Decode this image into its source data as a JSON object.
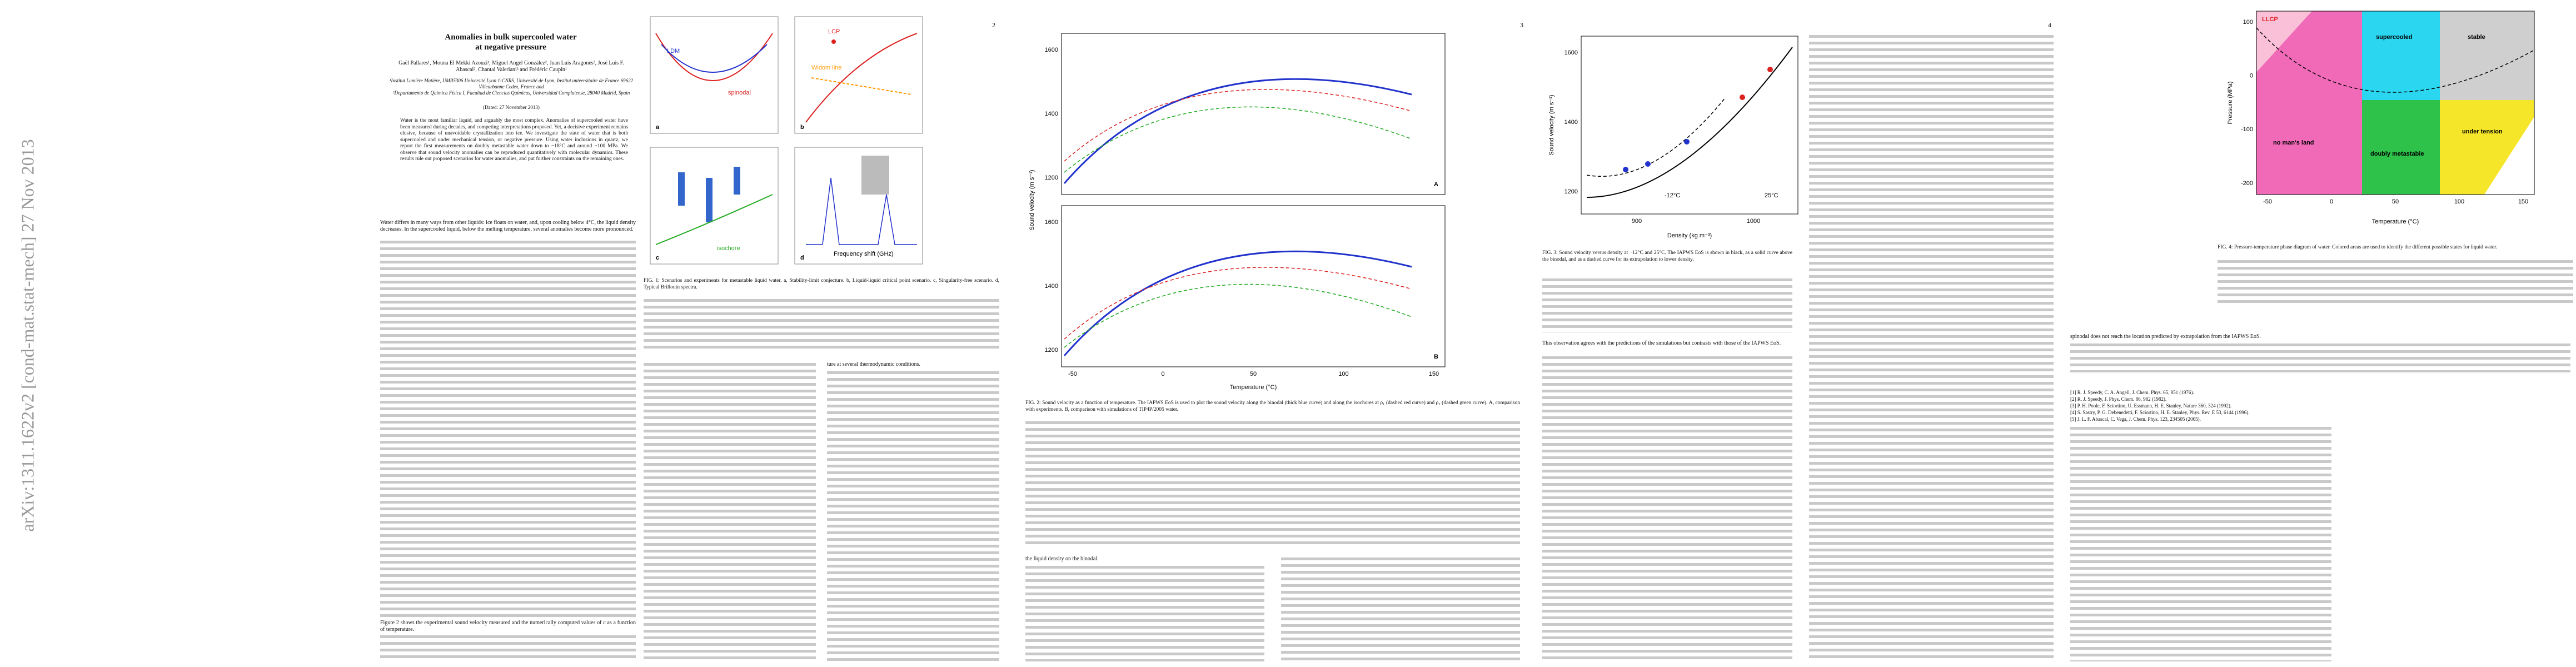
{
  "stamp": "arXiv:1311.1622v2 [cond-mat.stat-mech] 27 Nov 2013",
  "page_numbers": [
    2,
    3,
    4
  ],
  "header": {
    "title": [
      "Anomalies in bulk supercooled water",
      "at negative pressure"
    ],
    "authors": "Gaël Pallares¹, Mouna El Mekki Azouzi¹, Miguel Angel González², Juan Luis Aragones², José Luis F. Abascal², Chantal Valeriani² and Frédéric Caupin¹",
    "affiliations": [
      "¹Institut Lumière Matière, UMR5306 Université Lyon 1-CNRS, Université de Lyon, Institut universitaire de France 69622 Villeurbanne Cedex, France and",
      "²Departamento de Química Física I, Facultad de Ciencias Químicas, Universidad Complutense, 28040 Madrid, Spain"
    ],
    "dated": "(Dated: 27 November 2013)"
  },
  "abstract": "Water is the most familiar liquid, and arguably the most complex. Anomalies of supercooled water have been measured during decades, and competing interpretations proposed. Yet, a decisive experiment remains elusive, because of unavoidable crystallization into ice. We investigate the state of water that is both supercooled and under mechanical tension, or negative pressure. Using water inclusions in quartz, we report the first measurements on doubly metastable water down to −18°C and around −100 MPa. We observe that sound velocity anomalies can be reproduced quantitatively with molecular dynamics. These results rule out proposed scenarios for water anomalies, and put further constraints on the remaining ones.",
  "body": {
    "p1": "Water differs in many ways from other liquids: ice floats on water, and, upon cooling below 4°C, the liquid density decreases. In the supercooled liquid, below the melting temperature, several anomalies become more pronounced.",
    "p2": "Figure 2 shows the experimental sound velocity measured and the numerically computed values of c as a function of temperature.",
    "p3": "ture at several thermodynamic conditions.",
    "p4": "the liquid density on the binodal.",
    "p5": "This observation agrees with the predictions of the simulations but contrasts with those of the IAPWS EoS.",
    "p6": "spinodal does not reach the location predicted by extrapolation from the IAPWS EoS."
  },
  "figures": {
    "fig1": {
      "panels": [
        "a",
        "b",
        "c",
        "d"
      ],
      "labels": [
        "spinodal",
        "LDM",
        "LCP",
        "Widom line",
        "isochore",
        "Frequency shift (GHz)"
      ],
      "caption": "FIG. 1: Scenarios and experiments for metastable liquid water. a, Stability-limit conjecture. b, Liquid-liquid critical point scenario. c, Singularity-free scenario. d, Typical Brillouin spectra."
    },
    "fig2": {
      "panels": [
        "A",
        "B"
      ],
      "ylabel": "Sound velocity (m s⁻¹)",
      "xlabel": "Temperature (°C)",
      "yticks": [
        1200,
        1400,
        1600
      ],
      "xticks": [
        -50,
        0,
        50,
        100,
        150
      ],
      "caption": "FIG. 2: Sound velocity as a function of temperature. The IAPWS EoS is used to plot the sound velocity along the binodal (thick blue curve) and along the isochores at ρ₁ (dashed red curve) and ρ₂ (dashed green curve). A, comparison with experiments. B, comparison with simulations of TIP4P/2005 water."
    },
    "fig3": {
      "ylabel": "Sound velocity (m s⁻¹)",
      "xlabel": "Density (kg m⁻³)",
      "yticks": [
        1200,
        1400,
        1600
      ],
      "xticks": [
        900,
        1000
      ],
      "labels": [
        "-12°C",
        "25°C"
      ],
      "caption": "FIG. 3: Sound velocity versus density at −12°C and 25°C. The IAPWS EoS is shown in black, as a solid curve above the binodal, and as a dashed curve for its extrapolation to lower density."
    },
    "fig4": {
      "ylabel": "Pressure (MPa)",
      "xlabel": "Temperature (°C)",
      "yticks": [
        100,
        0,
        -100,
        -200
      ],
      "xticks": [
        -50,
        0,
        50,
        100,
        150
      ],
      "regions": [
        "LLCP",
        "supercooled",
        "stable",
        "under tension",
        "doubly metastable",
        "no man's land"
      ],
      "caption": "FIG. 4: Pressure-temperature phase diagram of water. Colored areas are used to identify the different possible states for liquid water."
    }
  },
  "references": [
    "[1] R. J. Speedy, C. A. Angell, J. Chem. Phys. 65, 851 (1976).",
    "[2] R. J. Speedy, J. Phys. Chem. 86, 982 (1982).",
    "[3] P. H. Poole, F. Sciortino, U. Essmann, H. E. Stanley, Nature 360, 324 (1992).",
    "[4] S. Sastry, P. G. Debenedetti, F. Sciortino, H. E. Stanley, Phys. Rev. E 53, 6144 (1996).",
    "[5] J. L. F. Abascal, C. Vega, J. Chem. Phys. 123, 234505 (2005)."
  ]
}
